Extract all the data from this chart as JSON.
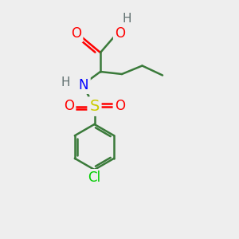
{
  "bg_color": "#eeeeee",
  "atom_colors": {
    "C": "#3a7a3a",
    "O": "#ff0000",
    "N": "#0000ff",
    "S": "#cccc00",
    "Cl": "#00cc00",
    "H": "#607070"
  },
  "bond_color": "#3a7a3a",
  "bond_width": 1.8,
  "font_size": 12,
  "fig_size": [
    3.0,
    3.0
  ],
  "dpi": 100,
  "xlim": [
    0,
    10
  ],
  "ylim": [
    0,
    10
  ]
}
